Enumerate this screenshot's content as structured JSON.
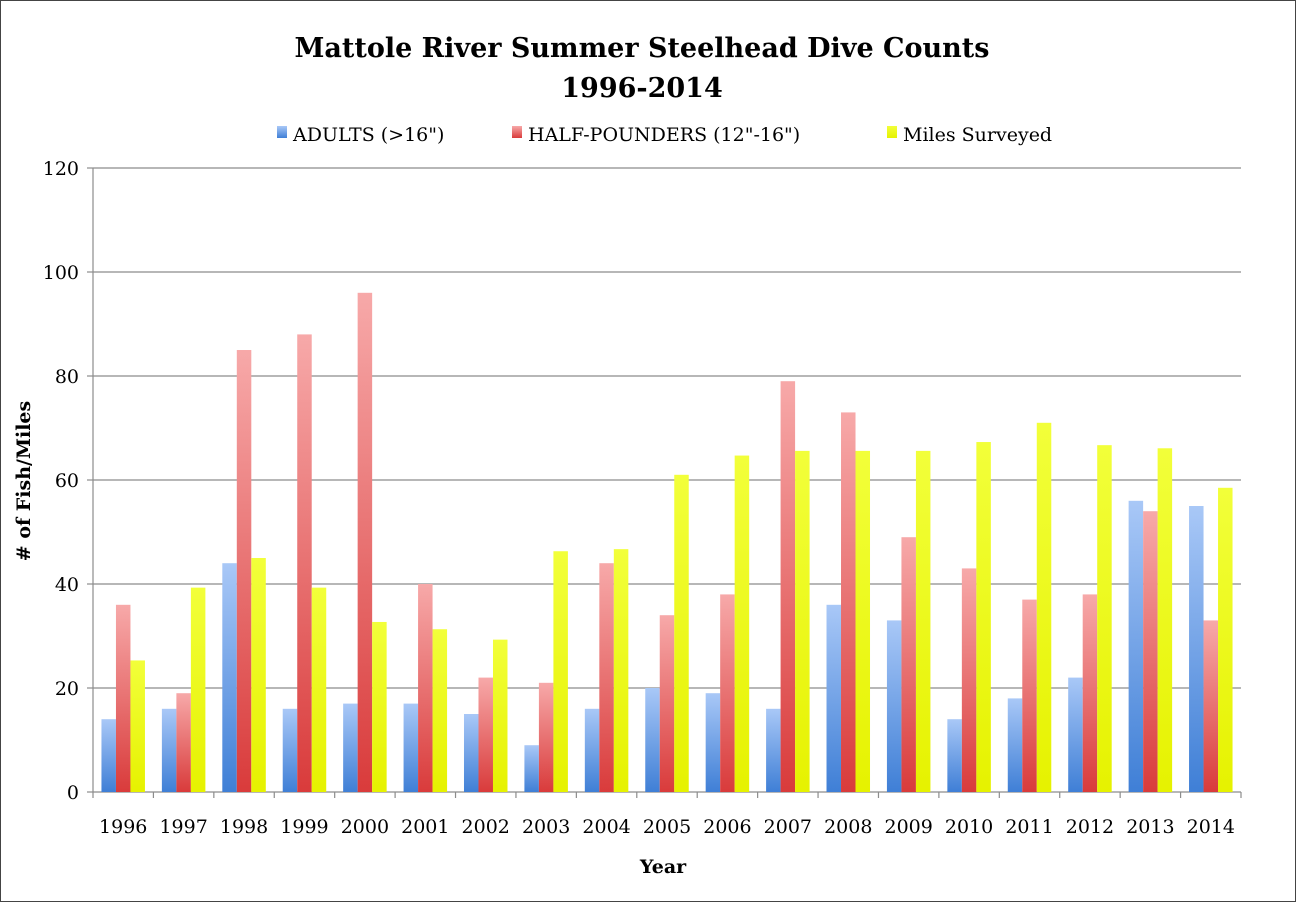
{
  "chart_data": {
    "type": "bar",
    "title": "Mattole River Summer Steelhead Dive Counts",
    "subtitle": "1996-2014",
    "xlabel": "Year",
    "ylabel": "# of Fish/Miles",
    "ylim": [
      0,
      120
    ],
    "yticks": [
      "0",
      "20",
      "40",
      "60",
      "80",
      "100",
      "120"
    ],
    "grid": true,
    "legend_position": "top",
    "categories": [
      "1996",
      "1997",
      "1998",
      "1999",
      "2000",
      "2001",
      "2002",
      "2003",
      "2004",
      "2005",
      "2006",
      "2007",
      "2008",
      "2009",
      "2010",
      "2011",
      "2012",
      "2013",
      "2014"
    ],
    "series": [
      {
        "name": "ADULTS (>16\")",
        "color_top": "#a9c8f7",
        "color_bottom": "#3f7fd6",
        "values": [
          14,
          16,
          44,
          16,
          17,
          17,
          15,
          9,
          16,
          20,
          19,
          16,
          36,
          33,
          14,
          18,
          22,
          56,
          55
        ]
      },
      {
        "name": "HALF-POUNDERS (12\"-16\")",
        "color_top": "#f7a9a9",
        "color_bottom": "#d93b3b",
        "values": [
          36,
          19,
          85,
          88,
          96,
          40,
          22,
          21,
          44,
          34,
          38,
          79,
          73,
          49,
          43,
          37,
          38,
          54,
          33
        ]
      },
      {
        "name": "Miles Surveyed",
        "color_top": "#f2ff3a",
        "color_bottom": "#e6f200",
        "values": [
          25.3,
          39.3,
          45,
          39.3,
          32.7,
          31.3,
          29.3,
          46.3,
          46.7,
          61,
          64.7,
          65.6,
          65.6,
          65.6,
          67.3,
          71,
          66.7,
          66.1,
          58.5
        ]
      }
    ]
  }
}
